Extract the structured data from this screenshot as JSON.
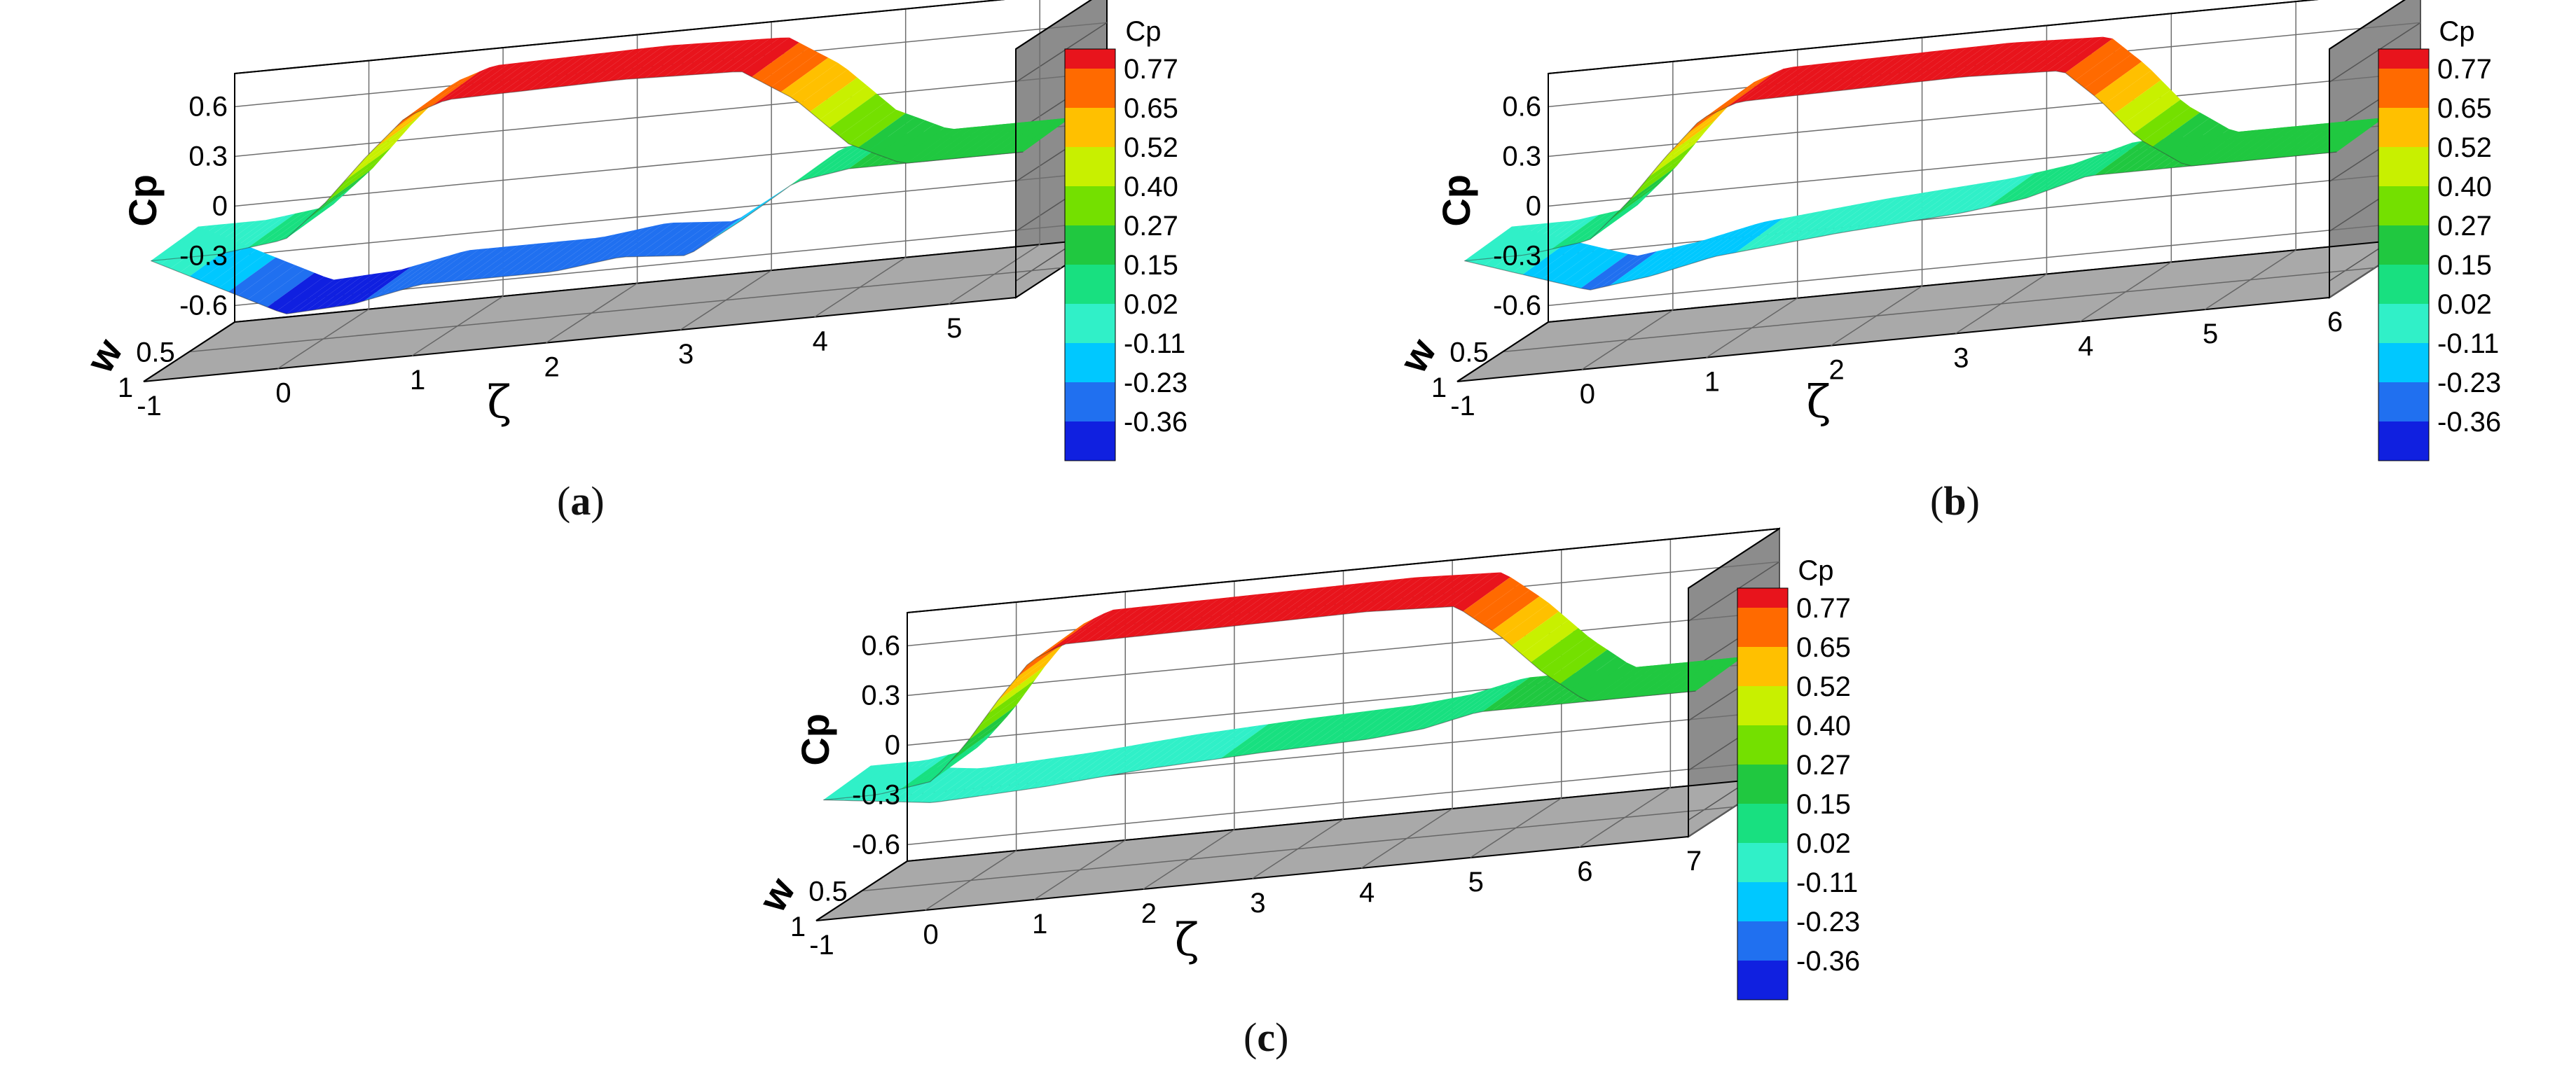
{
  "figure": {
    "panels": [
      {
        "id": "a",
        "label_open": "(",
        "label_letter": "a",
        "label_close": ")"
      },
      {
        "id": "b",
        "label_open": "(",
        "label_letter": "b",
        "label_close": ")"
      },
      {
        "id": "c",
        "label_open": "(",
        "label_letter": "c",
        "label_close": ")"
      }
    ]
  },
  "colors": {
    "grey_floor": "#a9a9a9",
    "grey_wall": "#8c8c8c",
    "grid": "#6e6e6e",
    "frame": "#000000",
    "surface_edge": "#3a3a3a"
  },
  "chart_data": [
    {
      "type": "surface3d",
      "panel": "a",
      "zlabel": "Cp",
      "xlabel": "ζ",
      "ylabel": "w",
      "zticks": [
        "0.6",
        "0.3",
        "0",
        "-0.3",
        "-0.6"
      ],
      "xticks": [
        "-1",
        "0",
        "1",
        "2",
        "3",
        "4",
        "5"
      ],
      "yticks": [
        "1",
        "0.5"
      ],
      "xlim": [
        -1,
        5.5
      ],
      "zlim": [
        -0.7,
        0.8
      ],
      "colorbar": {
        "title": "Cp",
        "levels": [
          "0.77",
          "0.65",
          "0.52",
          "0.40",
          "0.27",
          "0.15",
          "0.02",
          "-0.11",
          "-0.23",
          "-0.36"
        ]
      },
      "upper_surface": {
        "x": [
          -1,
          -0.5,
          0,
          0.3,
          0.6,
          0.9,
          1.2,
          2.5,
          3.4,
          3.8,
          4.2,
          4.6,
          5.5
        ],
        "cp": [
          0.0,
          0.0,
          0.05,
          0.25,
          0.5,
          0.72,
          0.8,
          0.82,
          0.8,
          0.6,
          0.3,
          0.15,
          0.15
        ]
      },
      "lower_surface": {
        "x": [
          -1,
          0,
          0.5,
          1,
          2,
          2.5,
          3,
          3.4,
          3.8,
          4.2,
          4.6,
          5.5
        ],
        "cp": [
          0.0,
          -0.4,
          -0.38,
          -0.3,
          -0.3,
          -0.25,
          -0.28,
          -0.1,
          0.1,
          0.15,
          0.15,
          0.15
        ]
      }
    },
    {
      "type": "surface3d",
      "panel": "b",
      "zlabel": "Cp",
      "xlabel": "ζ",
      "ylabel": "w",
      "zticks": [
        "0.6",
        "0.3",
        "0",
        "-0.3",
        "-0.6"
      ],
      "xticks": [
        "-1",
        "0",
        "1",
        "2",
        "3",
        "4",
        "5",
        "6"
      ],
      "yticks": [
        "1",
        "0.5"
      ],
      "xlim": [
        -1,
        6
      ],
      "zlim": [
        -0.7,
        0.8
      ],
      "colorbar": {
        "title": "Cp",
        "levels": [
          "0.77",
          "0.65",
          "0.52",
          "0.40",
          "0.27",
          "0.15",
          "0.02",
          "-0.11",
          "-0.23",
          "-0.36"
        ]
      },
      "upper_surface": {
        "x": [
          -1,
          -0.5,
          0,
          0.3,
          0.6,
          0.9,
          1.2,
          3.0,
          3.8,
          4.1,
          4.4,
          4.8,
          6
        ],
        "cp": [
          0.0,
          0.0,
          0.05,
          0.25,
          0.5,
          0.72,
          0.8,
          0.82,
          0.8,
          0.6,
          0.35,
          0.15,
          0.15
        ]
      },
      "lower_surface": {
        "x": [
          -1,
          0,
          0.5,
          1,
          2,
          3,
          3.5,
          4,
          4.5,
          6
        ],
        "cp": [
          0.0,
          -0.25,
          -0.2,
          -0.12,
          -0.05,
          0.0,
          0.05,
          0.15,
          0.15,
          0.15
        ]
      }
    },
    {
      "type": "surface3d",
      "panel": "c",
      "zlabel": "Cp",
      "xlabel": "ζ",
      "ylabel": "w",
      "zticks": [
        "0.6",
        "0.3",
        "0",
        "-0.3",
        "-0.6"
      ],
      "xticks": [
        "-1",
        "0",
        "1",
        "2",
        "3",
        "4",
        "5",
        "6",
        "7"
      ],
      "yticks": [
        "1",
        "0.5"
      ],
      "xlim": [
        -1,
        7
      ],
      "zlim": [
        -0.7,
        0.8
      ],
      "colorbar": {
        "title": "Cp",
        "levels": [
          "0.77",
          "0.65",
          "0.52",
          "0.40",
          "0.27",
          "0.15",
          "0.02",
          "-0.11",
          "-0.23",
          "-0.36"
        ]
      },
      "upper_surface": {
        "x": [
          -1,
          -0.5,
          0,
          0.3,
          0.6,
          0.9,
          1.2,
          4.0,
          4.8,
          5.2,
          5.6,
          6.0,
          7
        ],
        "cp": [
          0.0,
          0.0,
          0.05,
          0.25,
          0.5,
          0.72,
          0.8,
          0.82,
          0.8,
          0.6,
          0.35,
          0.15,
          0.15
        ]
      },
      "lower_surface": {
        "x": [
          -1,
          0,
          1,
          2,
          3,
          4,
          4.5,
          5,
          5.5,
          7
        ],
        "cp": [
          0.0,
          -0.08,
          -0.05,
          0.0,
          0.03,
          0.05,
          0.08,
          0.15,
          0.15,
          0.15
        ]
      }
    }
  ]
}
